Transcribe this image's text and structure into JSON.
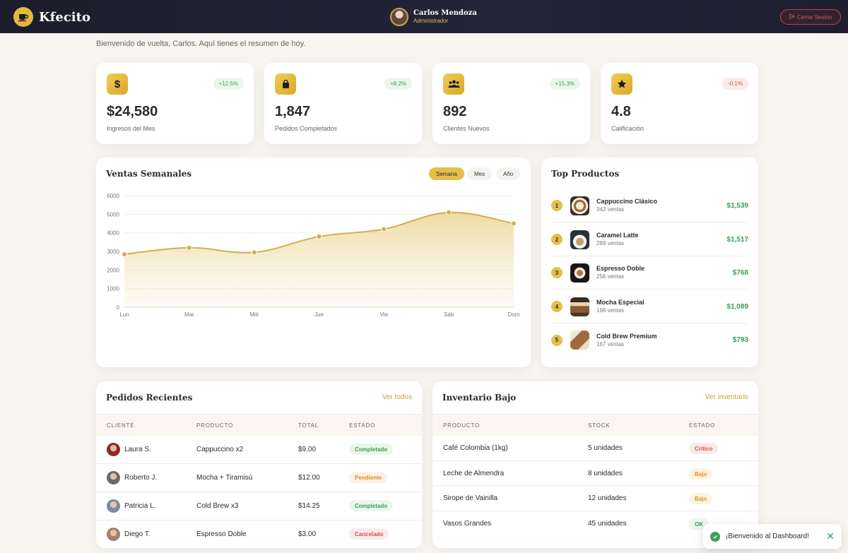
{
  "header": {
    "brand": "Kfecito",
    "user_name": "Carlos Mendoza",
    "user_role": "Administrador",
    "logout_label": "Cerrar Sesión"
  },
  "welcome": "Bienvenido de vuelta, Carlos. Aquí tienes el resumen de hoy.",
  "stats": [
    {
      "icon": "dollar-icon",
      "value": "$24,580",
      "label": "Ingresos del Mes",
      "change": "+12.5%"
    },
    {
      "icon": "shopping-bag-icon",
      "value": "1,847",
      "label": "Pedidos Completados",
      "change": "+8.2%"
    },
    {
      "icon": "users-icon",
      "value": "892",
      "label": "Clientes Nuevos",
      "change": "+15.3%"
    },
    {
      "icon": "star-icon",
      "value": "4.8",
      "label": "Calificación",
      "change": "-0.1%"
    }
  ],
  "sales": {
    "title": "Ventas Semanales",
    "ranges": [
      "Semana",
      "Mes",
      "Año"
    ],
    "active_range": "Semana"
  },
  "chart_data": {
    "type": "area",
    "title": "Ventas Semanales",
    "categories": [
      "Lun",
      "Mar",
      "Mié",
      "Jue",
      "Vie",
      "Sáb",
      "Dom"
    ],
    "values": [
      2850,
      3200,
      2950,
      3800,
      4200,
      5100,
      4500
    ],
    "yticks": [
      0,
      1000,
      2000,
      3000,
      4000,
      5000,
      6000
    ],
    "ylim": [
      0,
      6000
    ],
    "grid": true,
    "color": "#d4ae4a"
  },
  "top_products": {
    "title": "Top Productos",
    "items": [
      {
        "rank": "1",
        "name": "Cappuccino Clásico",
        "sales": "342 ventas",
        "amount": "$1,539"
      },
      {
        "rank": "2",
        "name": "Caramel Latte",
        "sales": "289 ventas",
        "amount": "$1,517"
      },
      {
        "rank": "3",
        "name": "Espresso Doble",
        "sales": "256 ventas",
        "amount": "$768"
      },
      {
        "rank": "4",
        "name": "Mocha Especial",
        "sales": "198 ventas",
        "amount": "$1,089"
      },
      {
        "rank": "5",
        "name": "Cold Brew Premium",
        "sales": "167 ventas",
        "amount": "$793"
      }
    ]
  },
  "orders": {
    "title": "Pedidos Recientes",
    "link": "Ver todos",
    "columns": [
      "CLIENTE",
      "PRODUCTO",
      "TOTAL",
      "ESTADO"
    ],
    "rows": [
      {
        "client": "Laura S.",
        "product": "Cappuccino x2",
        "total": "$9.00",
        "status": "Completado",
        "tone": "green"
      },
      {
        "client": "Roberto J.",
        "product": "Mocha + Tiramisú",
        "total": "$12.00",
        "status": "Pendiente",
        "tone": "orange"
      },
      {
        "client": "Patricia L.",
        "product": "Cold Brew x3",
        "total": "$14.25",
        "status": "Completado",
        "tone": "green"
      },
      {
        "client": "Diego T.",
        "product": "Espresso Doble",
        "total": "$3.00",
        "status": "Cancelado",
        "tone": "red"
      }
    ]
  },
  "inventory": {
    "title": "Inventario Bajo",
    "link": "Ver inventario",
    "columns": [
      "PRODUCTO",
      "STOCK",
      "ESTADO"
    ],
    "rows": [
      {
        "product": "Café Colombia (1kg)",
        "stock": "5 unidades",
        "status": "Crítico",
        "tone": "red"
      },
      {
        "product": "Leche de Almendra",
        "stock": "8 unidades",
        "status": "Bajo",
        "tone": "amber"
      },
      {
        "product": "Sirope de Vainilla",
        "stock": "12 unidades",
        "status": "Bajo",
        "tone": "amber"
      },
      {
        "product": "Vasos Grandes",
        "stock": "45 unidades",
        "status": "OK",
        "tone": "green"
      }
    ]
  },
  "toast": {
    "message": "¡Bienvenido al Dashboard!"
  }
}
